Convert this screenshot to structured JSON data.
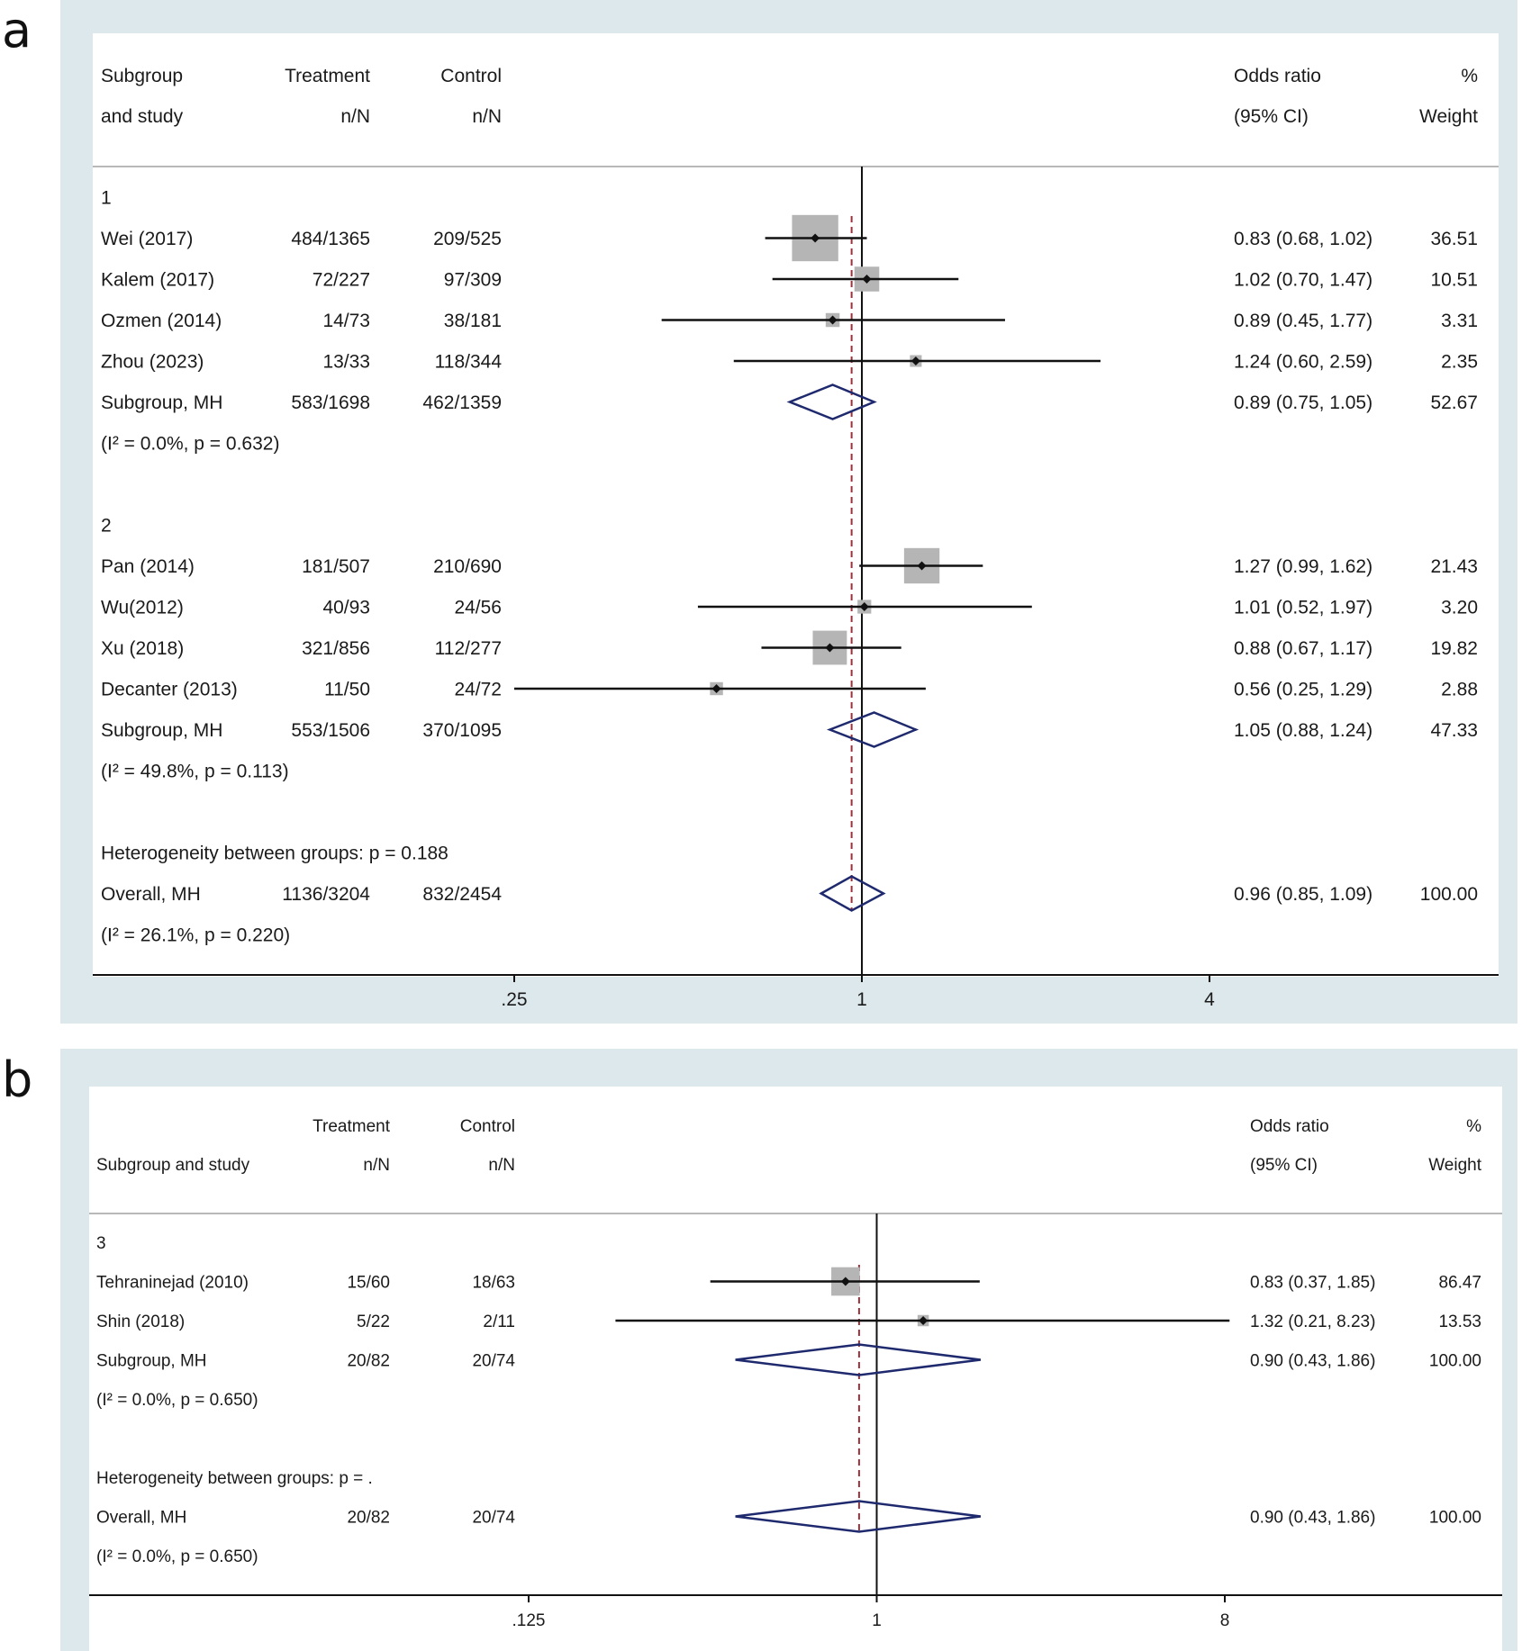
{
  "chart_data": [
    {
      "type": "forest",
      "panel_label": "a",
      "headers": {
        "subgroup": [
          "Subgroup",
          "and study"
        ],
        "treatment": [
          "Treatment",
          "n/N"
        ],
        "control": [
          "Control",
          "n/N"
        ],
        "or": [
          "Odds ratio",
          "(95% CI)"
        ],
        "weight": [
          "%",
          "Weight"
        ]
      },
      "axis": {
        "scale": "log",
        "xlim": [
          0.25,
          4
        ],
        "ticks": [
          0.25,
          1,
          4
        ],
        "tick_labels": [
          ".25",
          "1",
          "4"
        ],
        "reference_line": 1,
        "overall_line": 0.96
      },
      "rows": [
        {
          "kind": "label",
          "label": "1"
        },
        {
          "kind": "study",
          "label": "Wei (2017)",
          "treatment": "484/1365",
          "control": "209/525",
          "or": 0.83,
          "lo": 0.68,
          "hi": 1.02,
          "or_text": "0.83 (0.68, 1.02)",
          "weight": 36.51,
          "weight_text": "36.51"
        },
        {
          "kind": "study",
          "label": "Kalem (2017)",
          "treatment": "72/227",
          "control": "97/309",
          "or": 1.02,
          "lo": 0.7,
          "hi": 1.47,
          "or_text": "1.02 (0.70, 1.47)",
          "weight": 10.51,
          "weight_text": "10.51"
        },
        {
          "kind": "study",
          "label": "Ozmen (2014)",
          "treatment": "14/73",
          "control": "38/181",
          "or": 0.89,
          "lo": 0.45,
          "hi": 1.77,
          "or_text": "0.89 (0.45, 1.77)",
          "weight": 3.31,
          "weight_text": "3.31"
        },
        {
          "kind": "study",
          "label": "Zhou (2023)",
          "treatment": "13/33",
          "control": "118/344",
          "or": 1.24,
          "lo": 0.6,
          "hi": 2.59,
          "or_text": "1.24 (0.60, 2.59)",
          "weight": 2.35,
          "weight_text": "2.35"
        },
        {
          "kind": "pooled",
          "label": "Subgroup, MH",
          "treatment": "583/1698",
          "control": "462/1359",
          "or": 0.89,
          "lo": 0.75,
          "hi": 1.05,
          "or_text": "0.89 (0.75, 1.05)",
          "weight_text": "52.67"
        },
        {
          "kind": "het",
          "label": "(I² = 0.0%, p = 0.632)"
        },
        {
          "kind": "blank"
        },
        {
          "kind": "label",
          "label": "2"
        },
        {
          "kind": "study",
          "label": "Pan (2014)",
          "treatment": "181/507",
          "control": "210/690",
          "or": 1.27,
          "lo": 0.99,
          "hi": 1.62,
          "or_text": "1.27 (0.99, 1.62)",
          "weight": 21.43,
          "weight_text": "21.43"
        },
        {
          "kind": "study",
          "label": "Wu(2012)",
          "treatment": "40/93",
          "control": "24/56",
          "or": 1.01,
          "lo": 0.52,
          "hi": 1.97,
          "or_text": "1.01 (0.52, 1.97)",
          "weight": 3.2,
          "weight_text": "3.20"
        },
        {
          "kind": "study",
          "label": "Xu (2018)",
          "treatment": "321/856",
          "control": "112/277",
          "or": 0.88,
          "lo": 0.67,
          "hi": 1.17,
          "or_text": "0.88 (0.67, 1.17)",
          "weight": 19.82,
          "weight_text": "19.82"
        },
        {
          "kind": "study",
          "label": "Decanter (2013)",
          "treatment": "11/50",
          "control": "24/72",
          "or": 0.56,
          "lo": 0.25,
          "hi": 1.29,
          "or_text": "0.56 (0.25, 1.29)",
          "weight": 2.88,
          "weight_text": "2.88"
        },
        {
          "kind": "pooled",
          "label": "Subgroup, MH",
          "treatment": "553/1506",
          "control": "370/1095",
          "or": 1.05,
          "lo": 0.88,
          "hi": 1.24,
          "or_text": "1.05 (0.88, 1.24)",
          "weight_text": "47.33"
        },
        {
          "kind": "het",
          "label": "(I² = 49.8%, p = 0.113)"
        },
        {
          "kind": "blank"
        },
        {
          "kind": "label",
          "label": "Heterogeneity between groups: p = 0.188"
        },
        {
          "kind": "pooled",
          "label": "Overall, MH",
          "treatment": "1136/3204",
          "control": "832/2454",
          "or": 0.96,
          "lo": 0.85,
          "hi": 1.09,
          "or_text": "0.96 (0.85, 1.09)",
          "weight_text": "100.00"
        },
        {
          "kind": "het",
          "label": "(I² = 26.1%, p = 0.220)"
        }
      ]
    },
    {
      "type": "forest",
      "panel_label": "b",
      "headers": {
        "subgroup": [
          "",
          "Subgroup and study"
        ],
        "treatment": [
          "Treatment",
          "n/N"
        ],
        "control": [
          "Control",
          "n/N"
        ],
        "or": [
          "Odds ratio",
          "(95% CI)"
        ],
        "weight": [
          "%",
          "Weight"
        ]
      },
      "axis": {
        "scale": "log",
        "xlim": [
          0.125,
          8
        ],
        "ticks": [
          0.125,
          1,
          8
        ],
        "tick_labels": [
          ".125",
          "1",
          "8"
        ],
        "reference_line": 1,
        "overall_line": 0.9
      },
      "rows": [
        {
          "kind": "label",
          "label": "3"
        },
        {
          "kind": "study",
          "label": "Tehraninejad (2010)",
          "treatment": "15/60",
          "control": "18/63",
          "or": 0.83,
          "lo": 0.37,
          "hi": 1.85,
          "or_text": "0.83 (0.37, 1.85)",
          "weight": 86.47,
          "weight_text": "86.47"
        },
        {
          "kind": "study",
          "label": "Shin (2018)",
          "treatment": "5/22",
          "control": "2/11",
          "or": 1.32,
          "lo": 0.21,
          "hi": 8.23,
          "or_text": "1.32 (0.21, 8.23)",
          "weight": 13.53,
          "weight_text": "13.53"
        },
        {
          "kind": "pooled",
          "label": "Subgroup, MH",
          "treatment": "20/82",
          "control": "20/74",
          "or": 0.9,
          "lo": 0.43,
          "hi": 1.86,
          "or_text": "0.90 (0.43, 1.86)",
          "weight_text": "100.00"
        },
        {
          "kind": "het",
          "label": "(I² = 0.0%, p = 0.650)"
        },
        {
          "kind": "blank"
        },
        {
          "kind": "label",
          "label": "Heterogeneity between groups: p = ."
        },
        {
          "kind": "pooled",
          "label": "Overall, MH",
          "treatment": "20/82",
          "control": "20/74",
          "or": 0.9,
          "lo": 0.43,
          "hi": 1.86,
          "or_text": "0.90 (0.43, 1.86)",
          "weight_text": "100.00"
        },
        {
          "kind": "het",
          "label": "(I² = 0.0%, p = 0.650)"
        }
      ]
    }
  ],
  "colors": {
    "panel_bg": "#dde8ec",
    "box": "#b5b5b5",
    "diamond": "#1f2a6e",
    "ref_line": "#111111",
    "overall_line": "#a0303a"
  }
}
